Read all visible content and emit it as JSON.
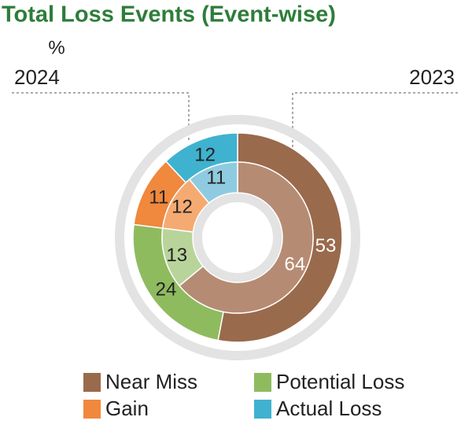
{
  "chart_data": {
    "type": "nested-donut",
    "title": "Total Loss Events (Event-wise)",
    "unit": "%",
    "categories": [
      "Near Miss",
      "Potential Loss",
      "Gain",
      "Actual Loss"
    ],
    "series": [
      {
        "name": "2024",
        "values": [
          53,
          24,
          11,
          12
        ],
        "colors": [
          "#9a6a4c",
          "#8fbb5f",
          "#f0883e",
          "#3fb2cf"
        ]
      },
      {
        "name": "2023",
        "values": [
          64,
          13,
          12,
          11
        ],
        "colors": [
          "#b68b73",
          "#b9d49b",
          "#f5aa72",
          "#8fcbe0"
        ]
      }
    ]
  }
}
